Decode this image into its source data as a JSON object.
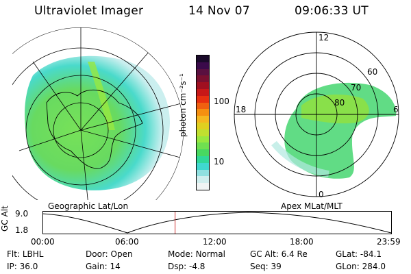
{
  "header": {
    "instrument": "Ultraviolet Imager",
    "date": "14 Nov 07",
    "time": "09:06:33 UT"
  },
  "geo_panel": {
    "label": "Geographic Lat/Lon"
  },
  "apex_panel": {
    "label": "Apex MLat/MLT",
    "mlt_labels": [
      "12",
      "18",
      "6",
      "0"
    ],
    "lat_labels": [
      "60",
      "70",
      "80"
    ]
  },
  "colorbar": {
    "unit_label": "photon cm⁻²s⁻¹",
    "ticks": [
      "100",
      "10"
    ],
    "colors": [
      "#1a0a2a",
      "#3a0a4a",
      "#5a1040",
      "#7a1030",
      "#a01020",
      "#c81818",
      "#e83010",
      "#f06010",
      "#f59010",
      "#f5b820",
      "#e0d020",
      "#c0e030",
      "#98e840",
      "#70e050",
      "#48d860",
      "#30d898",
      "#40d8d0",
      "#90e0e0",
      "#d0eeee",
      "#f0f4f4"
    ]
  },
  "timeline": {
    "axis_title": "GC Alt",
    "y_ticks": [
      "9.0",
      "1.8"
    ],
    "x_ticks": [
      "00:00",
      "06:00",
      "12:00",
      "18:00",
      "23:59"
    ],
    "current_hour": 9.11
  },
  "footer": {
    "rows": [
      [
        {
          "k": "Flt:",
          "v": "LBHL"
        },
        {
          "k": "Door:",
          "v": "Open"
        },
        {
          "k": "Mode:",
          "v": "Normal"
        },
        {
          "k": "GC Alt:",
          "v": "6.4 Re"
        },
        {
          "k": "GLat:",
          "v": "-84.1"
        }
      ],
      [
        {
          "k": "IP:",
          "v": "36.0"
        },
        {
          "k": "Gain:",
          "v": "14"
        },
        {
          "k": "Dsp:",
          "v": "-4.8"
        },
        {
          "k": "Seq:",
          "v": "39"
        },
        {
          "k": "GLon:",
          "v": "284.0"
        }
      ]
    ]
  }
}
